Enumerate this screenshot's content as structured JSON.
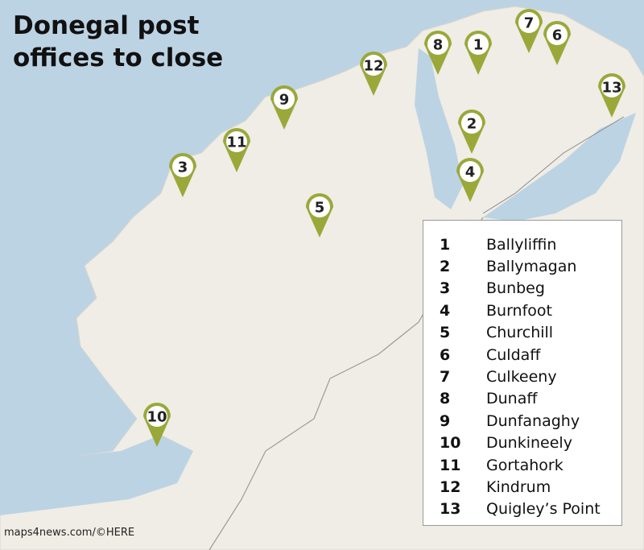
{
  "header": {
    "title": "Donegal post offices to close"
  },
  "legend": {
    "items": [
      {
        "number": "1",
        "name": "Ballyliffin"
      },
      {
        "number": "2",
        "name": "Ballymagan"
      },
      {
        "number": "3",
        "name": "Bunbeg"
      },
      {
        "number": "4",
        "name": "Burnfoot"
      },
      {
        "number": "5",
        "name": "Churchill"
      },
      {
        "number": "6",
        "name": "Culdaff"
      },
      {
        "number": "7",
        "name": "Culkeeny"
      },
      {
        "number": "8",
        "name": "Dunaff"
      },
      {
        "number": "9",
        "name": "Dunfanaghy"
      },
      {
        "number": "10",
        "name": "Dunkineely"
      },
      {
        "number": "11",
        "name": "Gortahork"
      },
      {
        "number": "12",
        "name": "Kindrum"
      },
      {
        "number": "13",
        "name": "Quigley’s Point"
      }
    ]
  },
  "credit": "maps4news.com/©HERE"
}
